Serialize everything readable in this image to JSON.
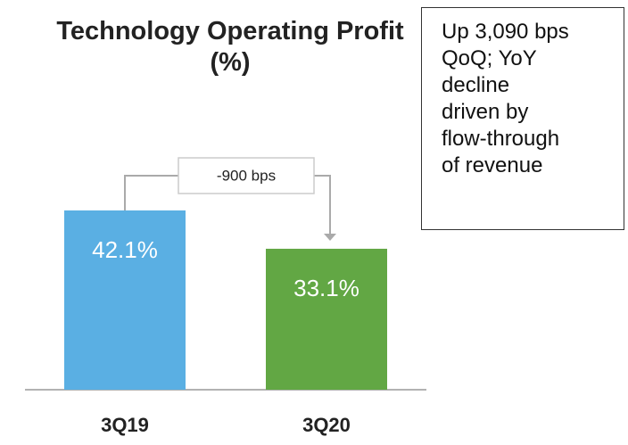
{
  "chart_data": {
    "type": "bar",
    "title": "Technology Operating Profit (%)",
    "categories": [
      "3Q19",
      "3Q20"
    ],
    "values": [
      42.1,
      33.1
    ],
    "value_labels": [
      "42.1%",
      "33.1%"
    ],
    "colors": [
      "#5aafe3",
      "#62a744"
    ],
    "change_label": "-900 bps",
    "annotation_lines": [
      "Up 3,090 bps",
      "QoQ; YoY",
      "decline",
      "driven by",
      "flow-through",
      "of revenue"
    ]
  }
}
